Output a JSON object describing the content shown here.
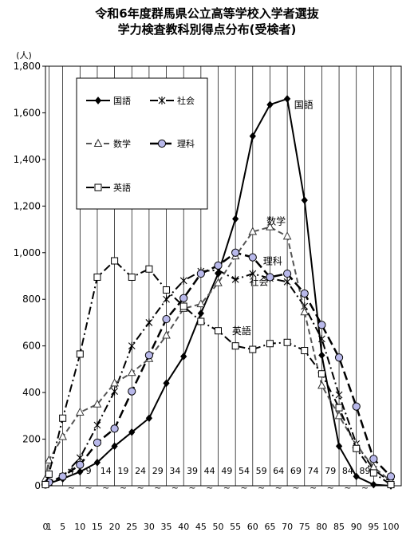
{
  "title_line1": "令和6年度群馬県公立高等学校入学者選抜",
  "title_line2": "学力検査教科別得点分布(受検者)",
  "chart_data": {
    "type": "line",
    "ylabel": "(人)",
    "ylim": [
      0,
      1800
    ],
    "yticks": [
      "0",
      "200",
      "400",
      "600",
      "800",
      "1,000",
      "1,200",
      "1,400",
      "1,600",
      "1,800"
    ],
    "grid": "vertical",
    "legend_placement": "top-left",
    "xlabels_upper": [
      "4",
      "9",
      "14",
      "19",
      "24",
      "29",
      "34",
      "39",
      "44",
      "49",
      "54",
      "59",
      "64",
      "69",
      "74",
      "79",
      "84",
      "89"
    ],
    "xlabels_lower": [
      "0",
      "1",
      "5",
      "10",
      "15",
      "20",
      "25",
      "30",
      "35",
      "40",
      "45",
      "50",
      "55",
      "60",
      "65",
      "70",
      "75",
      "80",
      "85",
      "90",
      "95",
      "100"
    ],
    "x": [
      0,
      1,
      5,
      10,
      15,
      20,
      25,
      30,
      35,
      40,
      45,
      50,
      55,
      60,
      65,
      70,
      75,
      80,
      85,
      90,
      95,
      100
    ],
    "series": [
      {
        "name": "国語",
        "color": "#000000",
        "marker": "diamond",
        "dash": "solid",
        "width": 2,
        "values": [
          5,
          10,
          30,
          60,
          100,
          170,
          230,
          290,
          440,
          555,
          740,
          910,
          1145,
          1500,
          1635,
          1660,
          1225,
          560,
          170,
          40,
          5,
          0
        ],
        "annotation": "国語",
        "annotation_x": 72,
        "annotation_y": 1620
      },
      {
        "name": "社会",
        "color": "#000000",
        "marker": "star",
        "dash": "dashdot",
        "width": 2,
        "values": [
          10,
          15,
          40,
          120,
          260,
          405,
          600,
          700,
          800,
          880,
          920,
          925,
          885,
          910,
          890,
          875,
          770,
          630,
          390,
          180,
          70,
          15
        ],
        "annotation": "社会",
        "annotation_x": 59,
        "annotation_y": 860
      },
      {
        "name": "数学",
        "color": "#555555",
        "marker": "triangle",
        "dash": "dash",
        "width": 2,
        "values": [
          30,
          110,
          210,
          315,
          350,
          440,
          485,
          545,
          645,
          760,
          780,
          870,
          985,
          1090,
          1110,
          1070,
          745,
          430,
          300,
          175,
          80,
          20
        ],
        "annotation": "数学",
        "annotation_x": 64,
        "annotation_y": 1120
      },
      {
        "name": "理科",
        "color": "#000000",
        "marker": "circle",
        "dash": "longdash",
        "width": 2.5,
        "values": [
          5,
          15,
          40,
          90,
          185,
          245,
          405,
          560,
          715,
          805,
          910,
          945,
          1000,
          980,
          895,
          910,
          825,
          690,
          550,
          340,
          115,
          40
        ],
        "annotation": "理科",
        "annotation_x": 63,
        "annotation_y": 950
      },
      {
        "name": "英語",
        "color": "#000000",
        "marker": "square",
        "dash": "dashdot",
        "width": 2,
        "values": [
          5,
          50,
          290,
          565,
          895,
          965,
          895,
          930,
          840,
          770,
          705,
          665,
          600,
          585,
          610,
          615,
          580,
          480,
          335,
          160,
          55,
          5
        ],
        "annotation": "英語",
        "annotation_x": 54,
        "annotation_y": 650
      }
    ]
  }
}
